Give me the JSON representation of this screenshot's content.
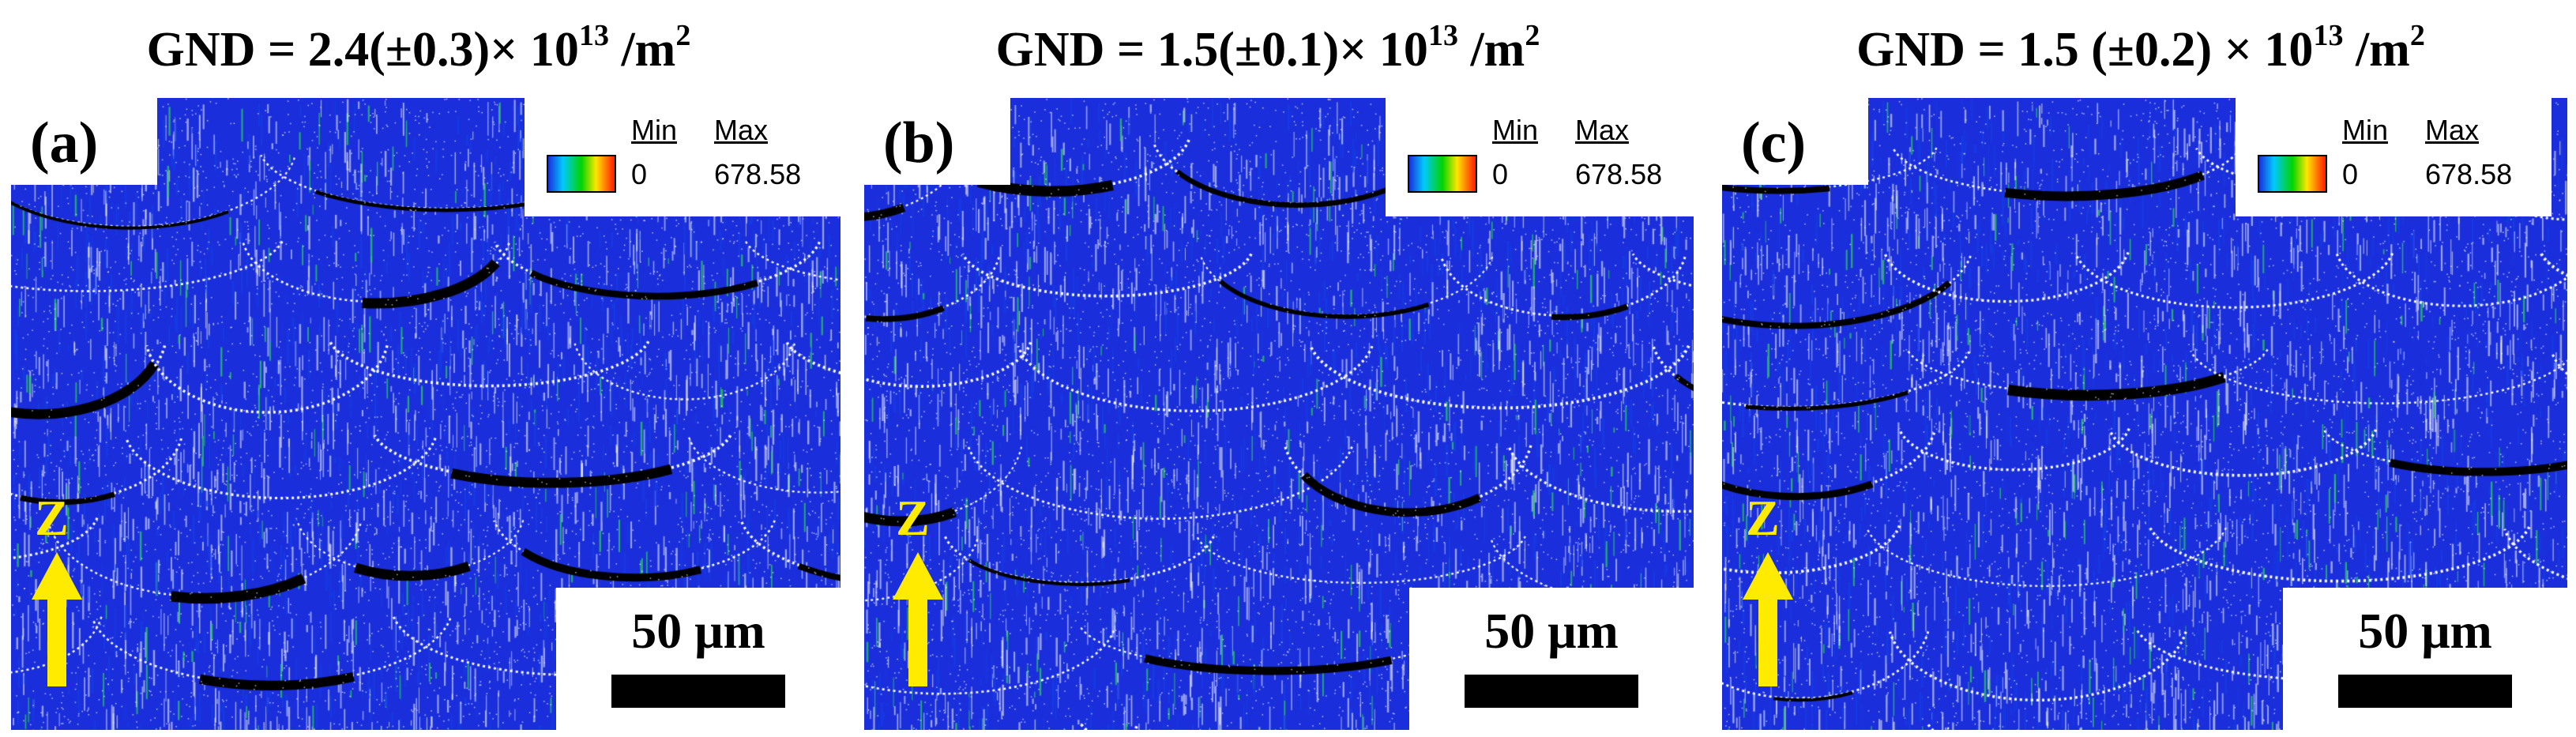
{
  "panels": [
    {
      "label": "(a)",
      "title_prefix": "GND = 2.4(±0.3)× 10",
      "title_exp": "13",
      "title_suffix": " /m",
      "title_unit_exp": "2",
      "legend": {
        "min_label": "Min",
        "max_label": "Max",
        "min_value": "0",
        "max_value": "678.58"
      },
      "scale_bar": "50 μm",
      "axis_label": "Z"
    },
    {
      "label": "(b)",
      "title_prefix": "GND = 1.5(±0.1)× 10",
      "title_exp": "13",
      "title_suffix": " /m",
      "title_unit_exp": "2",
      "legend": {
        "min_label": "Min",
        "max_label": "Max",
        "min_value": "0",
        "max_value": "678.58"
      },
      "scale_bar": "50 μm",
      "axis_label": "Z"
    },
    {
      "label": "(c)",
      "title_prefix": "GND = 1.5 (±0.2) × 10",
      "title_exp": "13",
      "title_suffix": " /m",
      "title_unit_exp": "2",
      "legend": {
        "min_label": "Min",
        "max_label": "Max",
        "min_value": "0",
        "max_value": "678.58"
      },
      "scale_bar": "50 μm",
      "axis_label": "Z"
    }
  ],
  "colors": {
    "map_base": "#1a2fdb",
    "boundary": "#ffffff",
    "unindexed": "#000000",
    "arrow": "#ffeb00"
  }
}
